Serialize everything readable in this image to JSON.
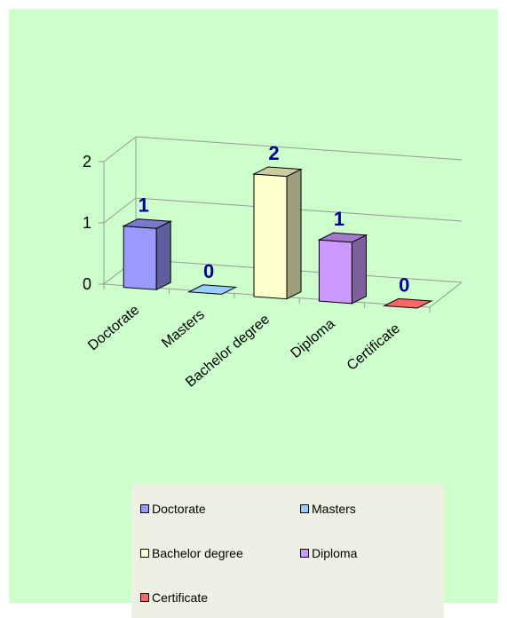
{
  "chart_data": {
    "type": "bar",
    "categories": [
      "Doctorate",
      "Masters",
      "Bachelor degree",
      "Diploma",
      "Certificate"
    ],
    "values": [
      1,
      0,
      2,
      1,
      0
    ],
    "data_labels": [
      "1",
      "0",
      "2",
      "1",
      "0"
    ],
    "y_ticks": [
      "0",
      "1",
      "2"
    ],
    "ylim": [
      0,
      2
    ],
    "title": "",
    "xlabel": "",
    "ylabel": "",
    "grid": true,
    "legend_position": "bottom",
    "colors": [
      "#9999ff",
      "#99ccff",
      "#ffffcc",
      "#cc99ff",
      "#ff6666"
    ],
    "series": [
      {
        "name": "Doctorate",
        "color": "#9999ff"
      },
      {
        "name": "Masters",
        "color": "#99ccff"
      },
      {
        "name": "Bachelor degree",
        "color": "#ffffcc"
      },
      {
        "name": "Diploma",
        "color": "#cc99ff"
      },
      {
        "name": "Certificate",
        "color": "#ff6666"
      }
    ],
    "legend": [
      "Doctorate",
      "Masters",
      "Bachelor degree",
      "Diploma",
      "Certificate"
    ]
  }
}
